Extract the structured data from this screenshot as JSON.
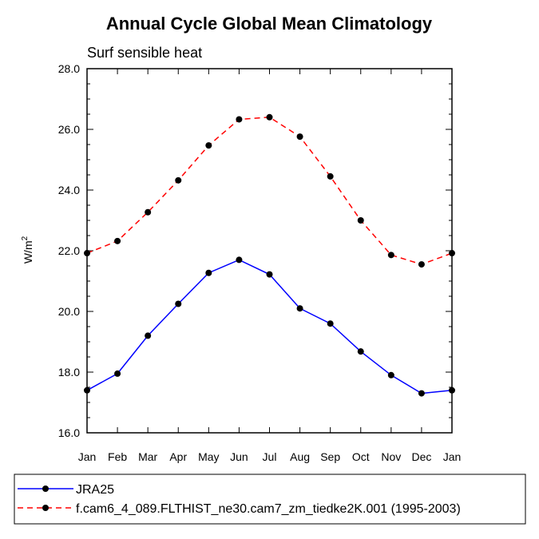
{
  "chart_data": {
    "type": "line",
    "title": "Annual Cycle Global Mean Climatology",
    "subtitle": "Surf sensible heat",
    "ylabel": "W/m",
    "ylabel_sup": "2",
    "xlabel": "",
    "categories": [
      "Jan",
      "Feb",
      "Mar",
      "Apr",
      "May",
      "Jun",
      "Jul",
      "Aug",
      "Sep",
      "Oct",
      "Nov",
      "Dec",
      "Jan"
    ],
    "ylim": [
      16.0,
      28.0
    ],
    "yticks": [
      "16.0",
      "18.0",
      "20.0",
      "22.0",
      "24.0",
      "26.0",
      "28.0"
    ],
    "grid": false,
    "legend_position": "bottom",
    "series": [
      {
        "name": "JRA25",
        "color": "#0000ff",
        "style": "solid",
        "marker": "dot",
        "values": [
          17.4,
          17.95,
          19.2,
          20.25,
          21.27,
          21.7,
          21.22,
          20.1,
          19.6,
          18.68,
          17.9,
          17.3,
          17.4
        ]
      },
      {
        "name": "f.cam6_4_089.FLTHIST_ne30.cam7_zm_tiedke2K.001 (1995-2003)",
        "color": "#ff0000",
        "style": "dashed",
        "marker": "dot",
        "values": [
          21.92,
          22.32,
          23.27,
          24.32,
          25.47,
          26.33,
          26.4,
          25.76,
          24.45,
          23.0,
          21.86,
          21.55,
          21.92
        ]
      }
    ]
  }
}
